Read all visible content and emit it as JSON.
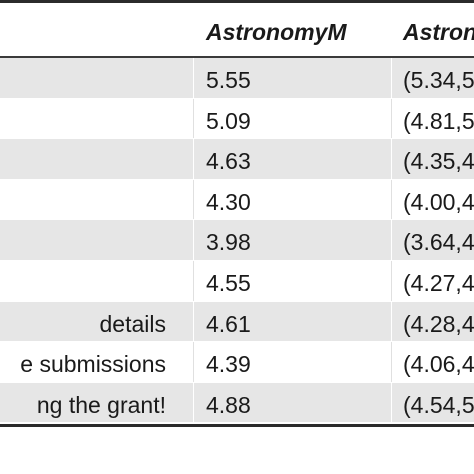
{
  "table": {
    "columns": [
      "AstronomyM",
      "Astron"
    ],
    "rows": [
      {
        "label": "",
        "value": "5.55",
        "ci": "(5.34,5"
      },
      {
        "label": "",
        "value": "5.09",
        "ci": "(4.81,5"
      },
      {
        "label": "",
        "value": "4.63",
        "ci": "(4.35,4"
      },
      {
        "label": "",
        "value": "4.30",
        "ci": "(4.00,4"
      },
      {
        "label": "",
        "value": "3.98",
        "ci": "(3.64,4"
      },
      {
        "label": "",
        "value": "4.55",
        "ci": "(4.27,4"
      },
      {
        "label": "details",
        "value": "4.61",
        "ci": "(4.28,4"
      },
      {
        "label": "e submissions",
        "value": "4.39",
        "ci": "(4.06,4"
      },
      {
        "label": "ng the grant!",
        "value": "4.88",
        "ci": "(4.54,5"
      }
    ]
  },
  "colors": {
    "shaded_row": "#e6e6e6",
    "rule": "#2b2b2b",
    "text": "#1a1a1a"
  }
}
